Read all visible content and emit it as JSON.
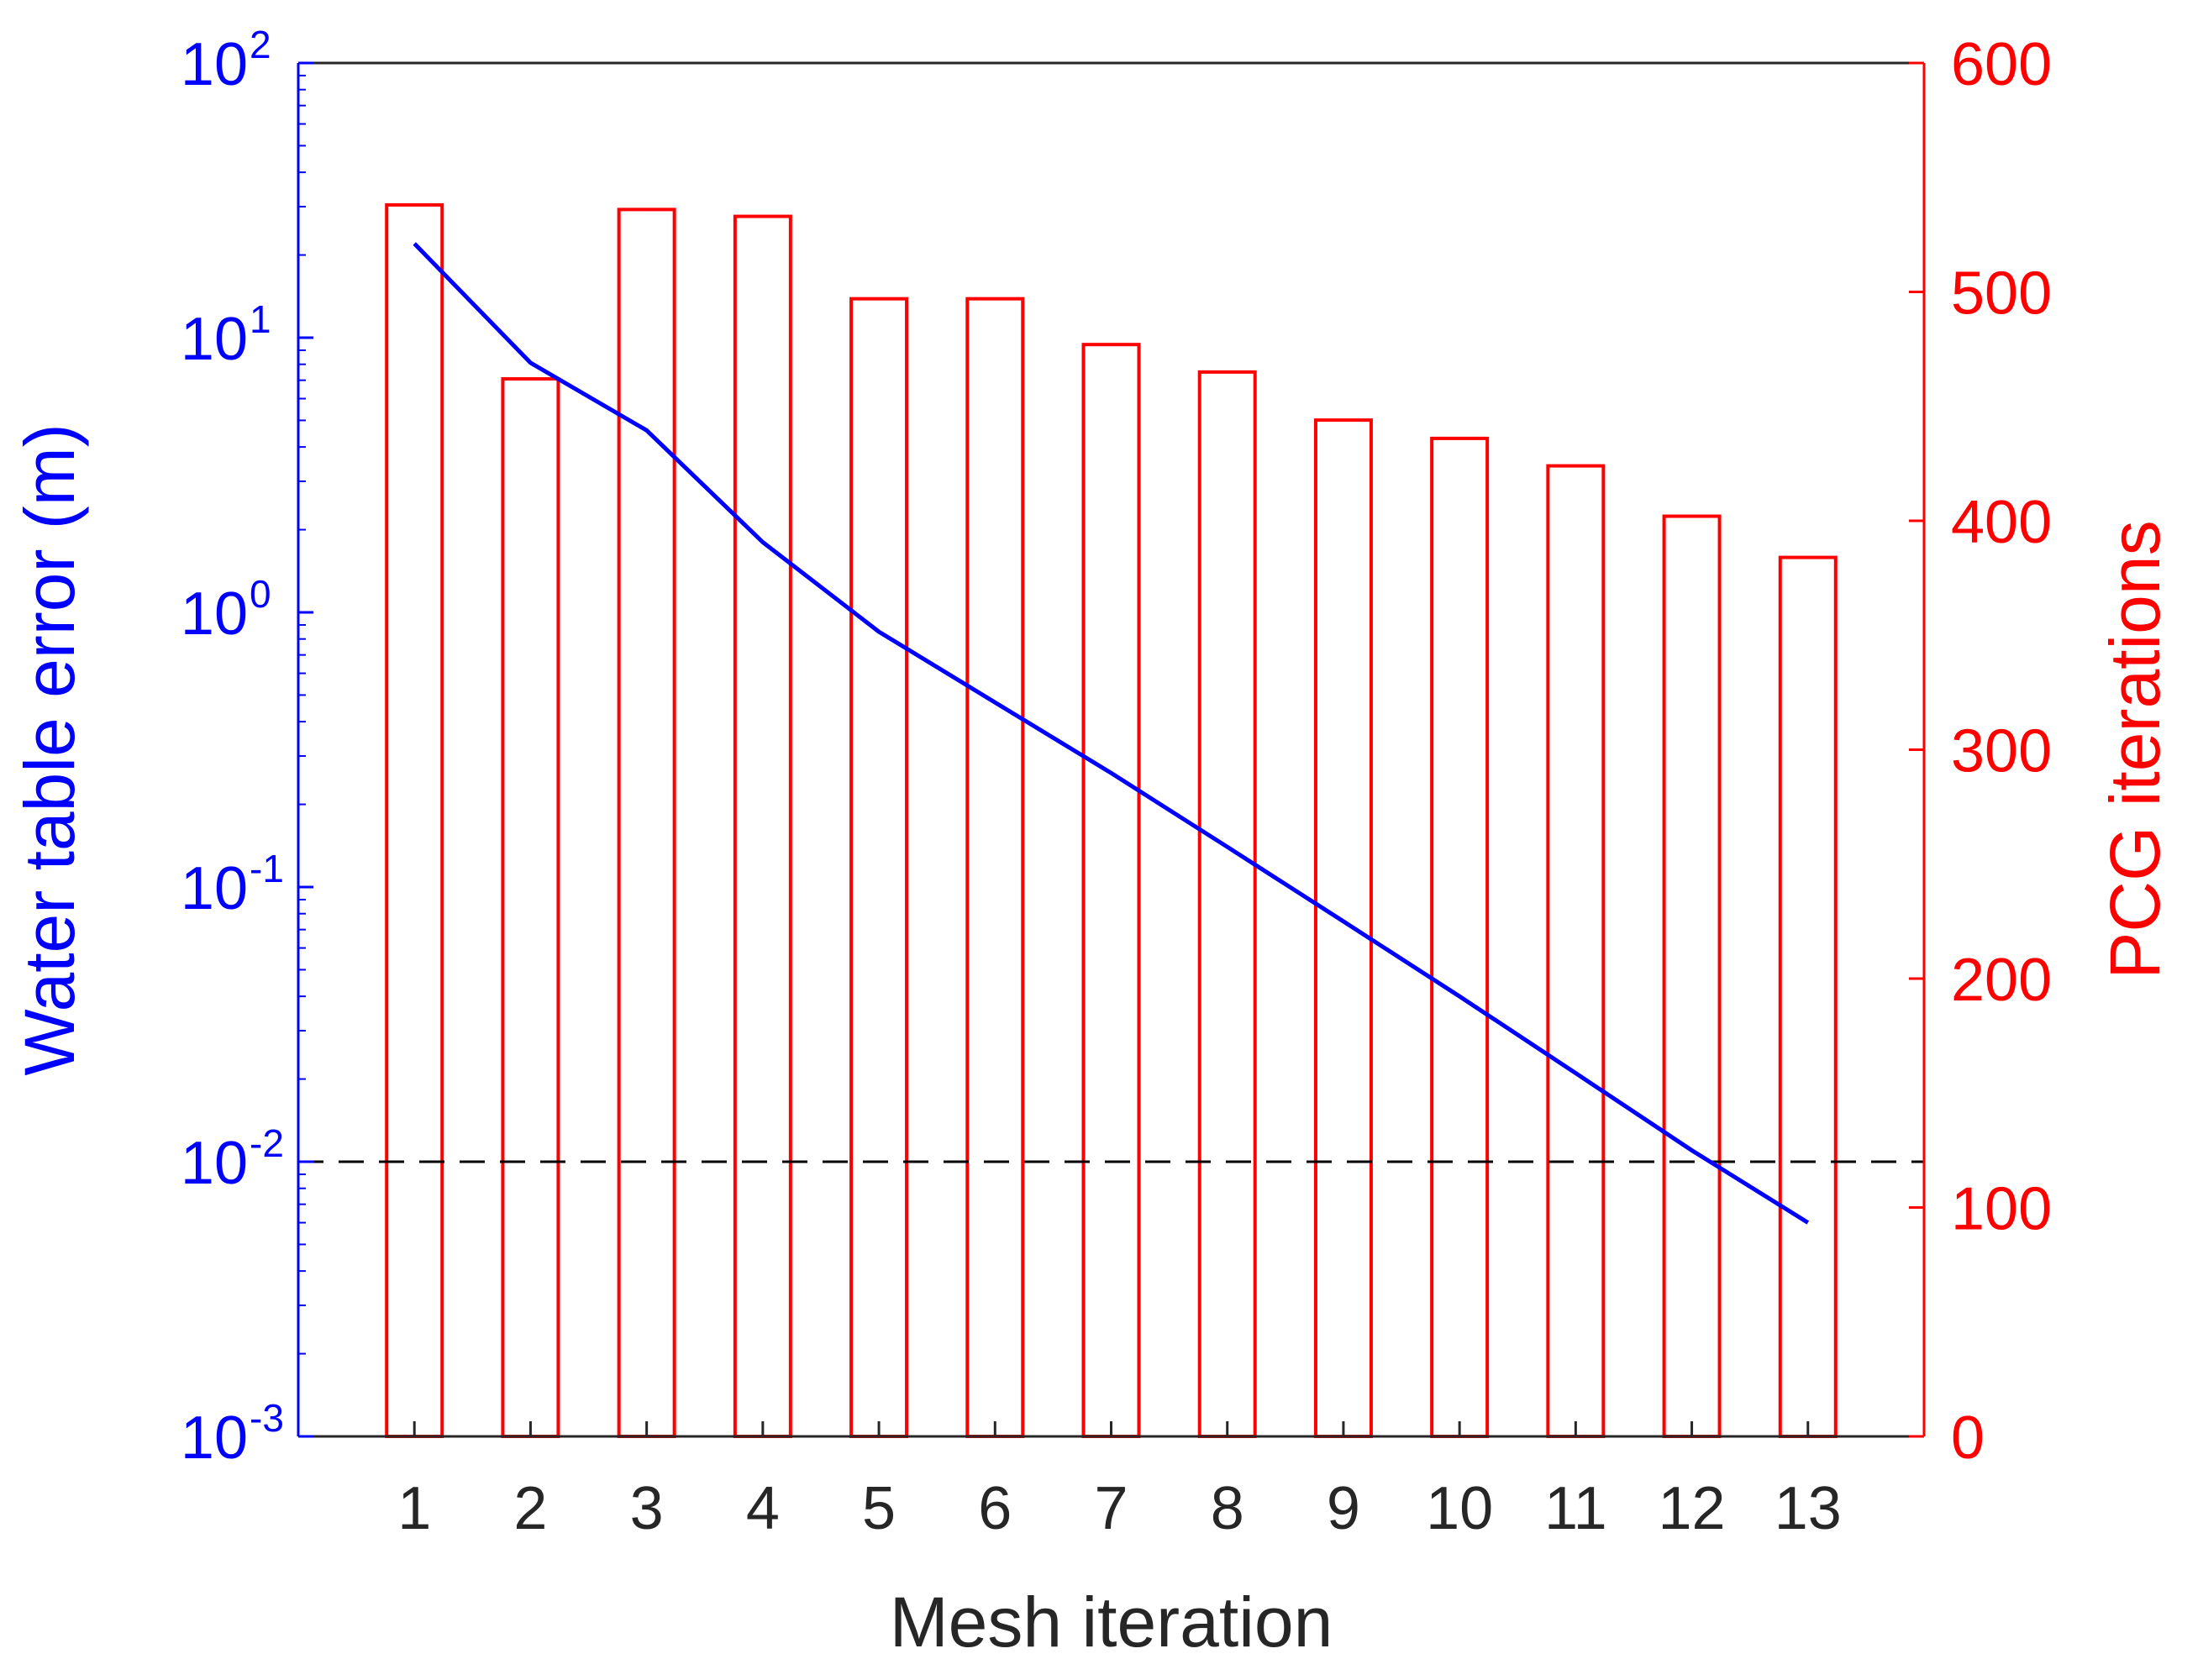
{
  "chart_data": {
    "type": "bar+line",
    "title": "",
    "xlabel": "Mesh iteration",
    "categories": [
      "1",
      "2",
      "3",
      "4",
      "5",
      "6",
      "7",
      "8",
      "9",
      "10",
      "11",
      "12",
      "13"
    ],
    "left_axis": {
      "label": "Water table error (m)",
      "scale": "log",
      "ylim": [
        0.001,
        100
      ],
      "ticks": [
        {
          "value": 0.001,
          "base": "10",
          "exp": "-3"
        },
        {
          "value": 0.01,
          "base": "10",
          "exp": "-2"
        },
        {
          "value": 0.1,
          "base": "10",
          "exp": "-1"
        },
        {
          "value": 1,
          "base": "10",
          "exp": "0"
        },
        {
          "value": 10,
          "base": "10",
          "exp": "1"
        },
        {
          "value": 100,
          "base": "10",
          "exp": "2"
        }
      ],
      "color": "#0000ff"
    },
    "right_axis": {
      "label": "PCG iterations",
      "scale": "linear",
      "ylim": [
        0,
        600
      ],
      "ticks": [
        "0",
        "100",
        "200",
        "300",
        "400",
        "500",
        "600"
      ],
      "color": "#ff0000"
    },
    "series": [
      {
        "name": "PCG iterations",
        "type": "bar",
        "axis": "right",
        "color": "#ff0000",
        "values": [
          538,
          462,
          536,
          533,
          497,
          497,
          477,
          465,
          444,
          436,
          424,
          402,
          384
        ]
      },
      {
        "name": "Water table error",
        "type": "line",
        "axis": "left",
        "color": "#0000ff",
        "values": [
          22,
          8.1,
          4.6,
          1.8,
          0.85,
          0.47,
          0.26,
          0.14,
          0.075,
          0.04,
          0.021,
          0.011,
          0.006
        ]
      }
    ],
    "reference_line": {
      "axis": "left",
      "value": 0.01,
      "style": "dashed",
      "color": "#000000"
    },
    "grid": false
  }
}
